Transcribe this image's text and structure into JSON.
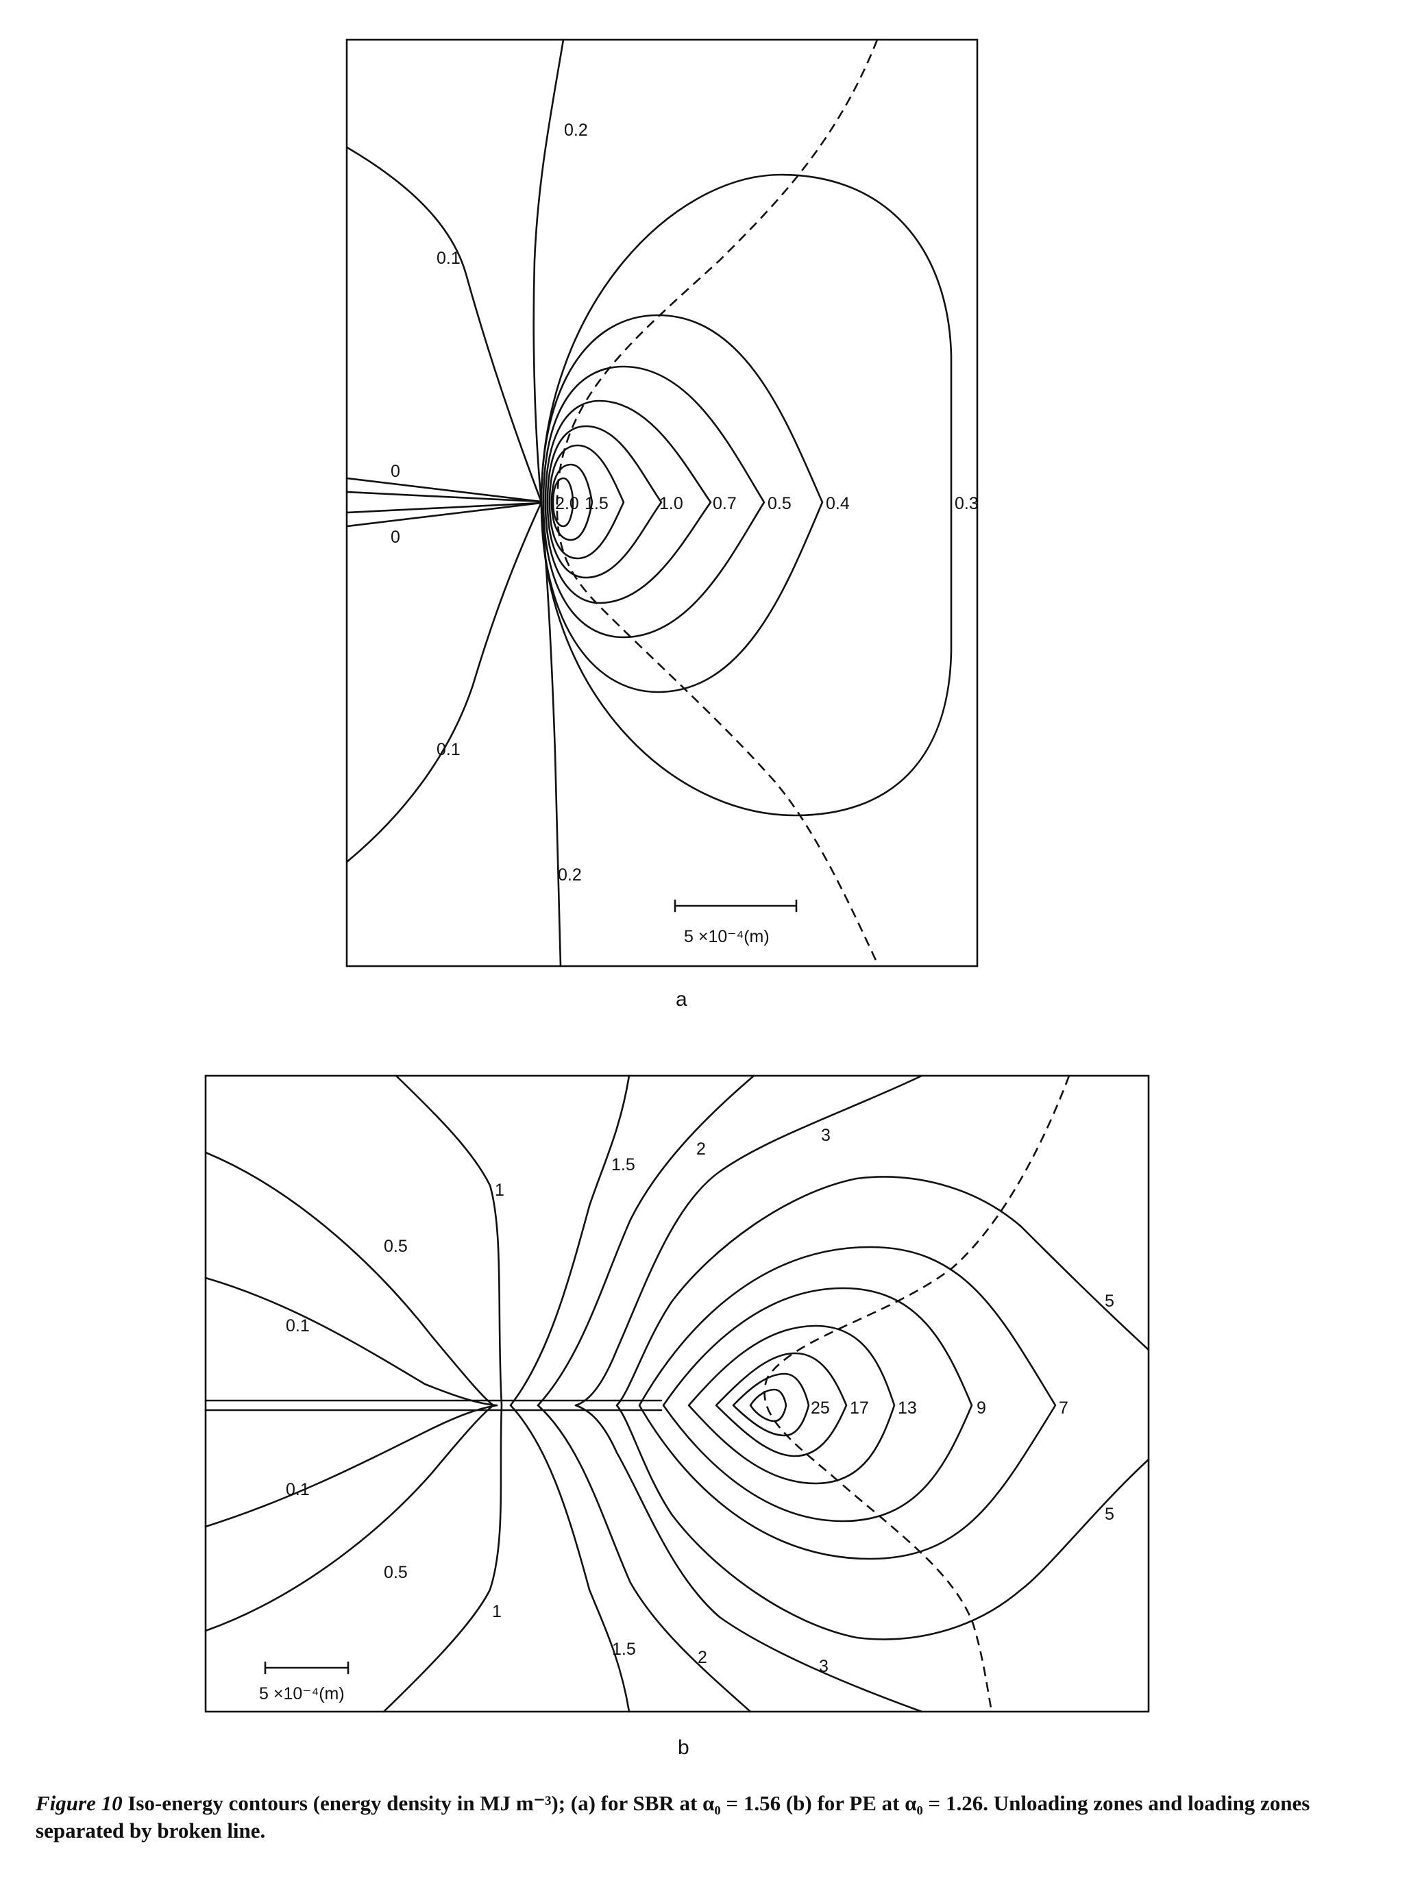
{
  "figure_a": {
    "panel_label": "a",
    "scale_bar_label": "5 ×10⁻⁴(m)",
    "contour_labels": {
      "c02_top": "0.2",
      "c01_top": "0.1",
      "c0_top": "0",
      "c0_bot": "0",
      "c20": "2.0",
      "c15": "1.5",
      "c10": "1.0",
      "c07": "0.7",
      "c05": "0.5",
      "c04": "0.4",
      "c03": "0.3",
      "c01_bot": "0.1",
      "c02_bot": "0.2"
    }
  },
  "figure_b": {
    "panel_label": "b",
    "scale_bar_label": "5 ×10⁻⁴(m)",
    "contour_labels": {
      "c1_top": "1",
      "c15_top": "1.5",
      "c2_top": "2",
      "c3_top": "3",
      "c05_top": "0.5",
      "c01_top": "0.1",
      "c5_top": "5",
      "c25": "25",
      "c17": "17",
      "c13": "13",
      "c9": "9",
      "c7": "7",
      "c01_bot": "0.1",
      "c05_bot": "0.5",
      "c1_bot": "1",
      "c15_bot": "1.5",
      "c2_bot": "2",
      "c3_bot": "3",
      "c5_bot": "5"
    }
  },
  "caption": {
    "label": "Figure 10",
    "text": " Iso-energy contours (energy density in MJ m⁻³); (a) for SBR at α₀ = 1.56 (b) for PE at α₀ = 1.26. Unloading zones and loading zones separated by broken line."
  }
}
